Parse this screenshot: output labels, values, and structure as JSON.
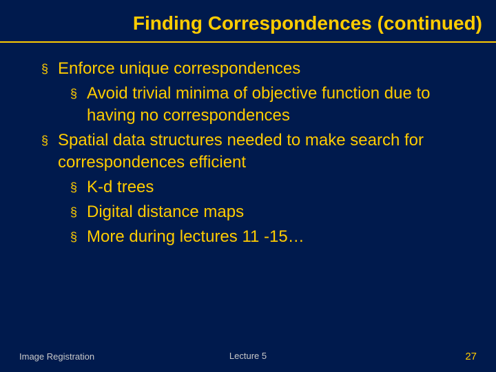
{
  "colors": {
    "background": "#001a4d",
    "accent": "#ffcc00",
    "footer_text": "#c9c9c9"
  },
  "typography": {
    "title_fontsize": 28,
    "body_fontsize": 24,
    "footer_fontsize": 13,
    "pagenum_fontsize": 15,
    "font_family": "Arial"
  },
  "title": "Finding Correspondences (continued)",
  "bullets": [
    {
      "level": 1,
      "text": "Enforce unique correspondences"
    },
    {
      "level": 2,
      "text": "Avoid trivial minima of objective function due to having no correspondences"
    },
    {
      "level": 1,
      "text": "Spatial data structures needed to make search for correspondences efficient"
    },
    {
      "level": 2,
      "text": "K-d trees"
    },
    {
      "level": 2,
      "text": "Digital distance maps"
    },
    {
      "level": 2,
      "text": "More during lectures 11 -15…"
    }
  ],
  "footer": {
    "left": "Image Registration",
    "center": "Lecture 5",
    "page_number": "27"
  },
  "bullet_marker": "§"
}
